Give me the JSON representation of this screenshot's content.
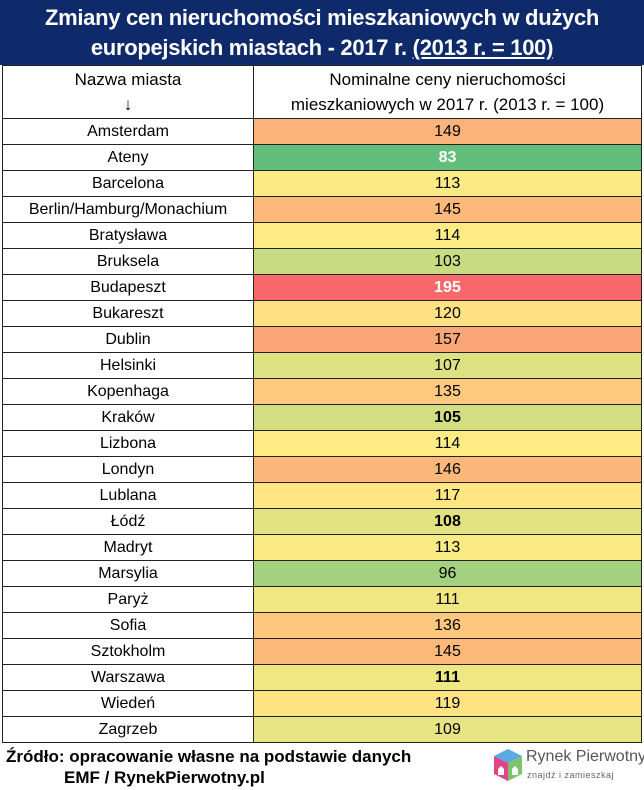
{
  "title": {
    "line1": "Zmiany cen nieruchomości mieszkaniowych w dużych",
    "line2_plain": "europejskich miastach - 2017 r. ",
    "line2_underlined": "(2013 r. = 100)"
  },
  "colors": {
    "header_bg": "#0e2a6a",
    "scale_min": "#63BE7B",
    "scale_mid": "#FFEB84",
    "scale_max": "#F8696B"
  },
  "chart_data": {
    "type": "table",
    "columns": [
      "Nazwa miasta ↓",
      "Nominalne ceny nieruchomości mieszkaniowych w 2017 r. (2013 r. = 100)"
    ],
    "column_header_1_line1": "Nazwa miasta",
    "column_header_1_line2": "↓",
    "column_header_2_line1": "Nominalne ceny nieruchomości",
    "column_header_2_line2": "mieszkaniowych w 2017 r. (2013 r. = 100)",
    "color_scale": "3-color (green-yellow-red)",
    "rows": [
      {
        "city": "Amsterdam",
        "value": 149
      },
      {
        "city": "Ateny",
        "value": 83,
        "bold": true
      },
      {
        "city": "Barcelona",
        "value": 113
      },
      {
        "city": "Berlin/Hamburg/Monachium",
        "value": 145
      },
      {
        "city": "Bratysława",
        "value": 114
      },
      {
        "city": "Bruksela",
        "value": 103
      },
      {
        "city": "Budapeszt",
        "value": 195,
        "bold": true
      },
      {
        "city": "Bukareszt",
        "value": 120
      },
      {
        "city": "Dublin",
        "value": 157
      },
      {
        "city": "Helsinki",
        "value": 107
      },
      {
        "city": "Kopenhaga",
        "value": 135
      },
      {
        "city": "Kraków",
        "value": 105,
        "bold": true
      },
      {
        "city": "Lizbona",
        "value": 114
      },
      {
        "city": "Londyn",
        "value": 146
      },
      {
        "city": "Lublana",
        "value": 117
      },
      {
        "city": "Łódź",
        "value": 108,
        "bold": true
      },
      {
        "city": "Madryt",
        "value": 113
      },
      {
        "city": "Marsylia",
        "value": 96
      },
      {
        "city": "Paryż",
        "value": 111
      },
      {
        "city": "Sofia",
        "value": 136
      },
      {
        "city": "Sztokholm",
        "value": 145
      },
      {
        "city": "Warszawa",
        "value": 111,
        "bold": true
      },
      {
        "city": "Wiedeń",
        "value": 119
      },
      {
        "city": "Zagrzeb",
        "value": 109
      }
    ]
  },
  "source": {
    "line1": "Źródło: opracowanie własne na podstawie danych",
    "line2": "EMF / RynekPierwotny.pl"
  },
  "logo": {
    "name": "Rynek Pierwotny",
    "tagline": "znajdź i zamieszkaj"
  }
}
